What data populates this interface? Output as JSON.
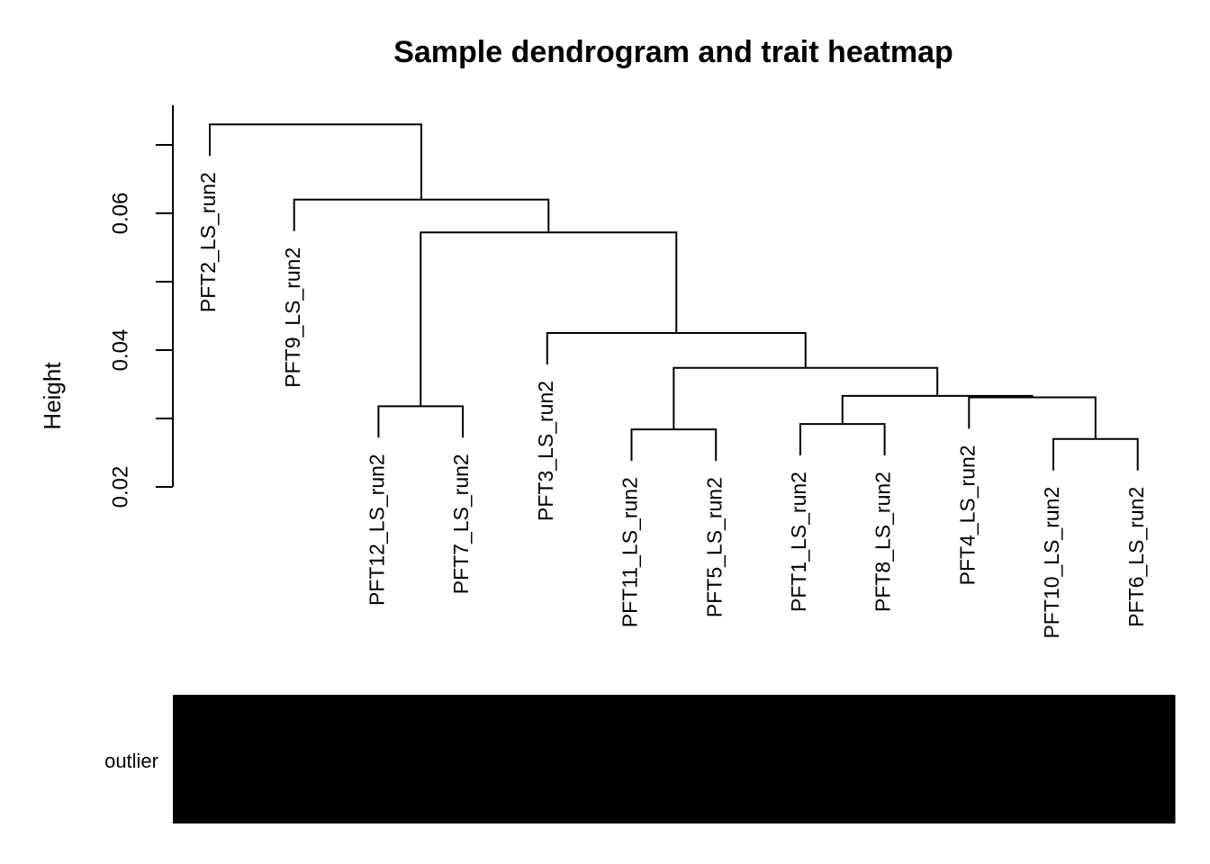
{
  "chart_data": {
    "type": "dendrogram",
    "title": "Sample dendrogram and trait heatmap",
    "ylabel": "Height",
    "ylim": [
      0.02,
      0.0758
    ],
    "yticks": [
      0.02,
      0.04,
      0.06
    ],
    "minor_yticks": [
      0.03,
      0.05,
      0.07
    ],
    "hang": 0.0046,
    "color": "#000000",
    "leaves": [
      "PFT2_LS_run2",
      "PFT9_LS_run2",
      "PFT12_LS_run2",
      "PFT7_LS_run2",
      "PFT3_LS_run2",
      "PFT11_LS_run2",
      "PFT5_LS_run2",
      "PFT1_LS_run2",
      "PFT8_LS_run2",
      "PFT4_LS_run2",
      "PFT10_LS_run2",
      "PFT6_LS_run2"
    ],
    "merges": [
      {
        "children": [
          2,
          3
        ],
        "height": 0.0318
      },
      {
        "children": [
          5,
          6
        ],
        "height": 0.0284
      },
      {
        "children": [
          7,
          8
        ],
        "height": 0.0292
      },
      {
        "children": [
          10,
          11
        ],
        "height": 0.027
      },
      {
        "children": [
          9,
          15
        ],
        "height": 0.0331
      },
      {
        "children": [
          14,
          16
        ],
        "height": 0.0333
      },
      {
        "children": [
          13,
          17
        ],
        "height": 0.0374
      },
      {
        "children": [
          4,
          18
        ],
        "height": 0.0425
      },
      {
        "children": [
          12,
          19
        ],
        "height": 0.0572
      },
      {
        "children": [
          1,
          20
        ],
        "height": 0.062
      },
      {
        "children": [
          0,
          21
        ],
        "height": 0.073
      }
    ],
    "trait": {
      "name": "outlier",
      "colors": [
        "#000000",
        "#000000",
        "#000000",
        "#000000",
        "#000000",
        "#000000",
        "#000000",
        "#000000",
        "#000000",
        "#000000",
        "#000000",
        "#000000"
      ]
    }
  }
}
